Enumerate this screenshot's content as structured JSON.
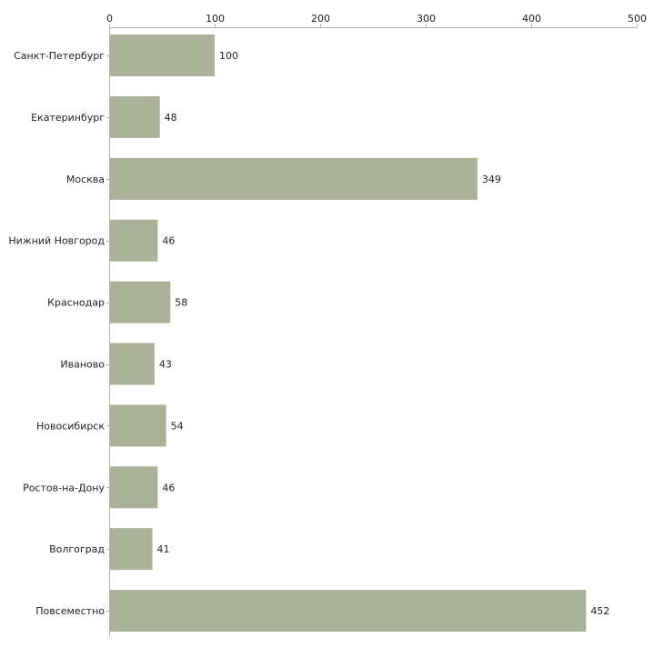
{
  "chart_data": {
    "type": "bar",
    "orientation": "horizontal",
    "title": "",
    "xlabel": "",
    "ylabel": "",
    "xlim": [
      0,
      500
    ],
    "x_ticks": [
      0,
      100,
      200,
      300,
      400,
      500
    ],
    "x_tick_labels": [
      "0",
      "100",
      "200",
      "300",
      "400",
      "500"
    ],
    "categories": [
      "Санкт-Петербург",
      "Екатеринбург",
      "Москва",
      "Нижний Новгород",
      "Краснодар",
      "Иваново",
      "Новосибирск",
      "Ростов-на-Дону",
      "Волгоград",
      "Повсеместно"
    ],
    "values": [
      100,
      48,
      349,
      46,
      58,
      43,
      54,
      46,
      41,
      452
    ],
    "data_labels": [
      "100",
      "48",
      "349",
      "46",
      "58",
      "43",
      "54",
      "46",
      "41",
      "452"
    ],
    "axis_position": "top",
    "grid": false,
    "legend": "none"
  },
  "colors": {
    "bar": "#acb298",
    "axis": "#b3b3b3",
    "text": "#222222"
  }
}
